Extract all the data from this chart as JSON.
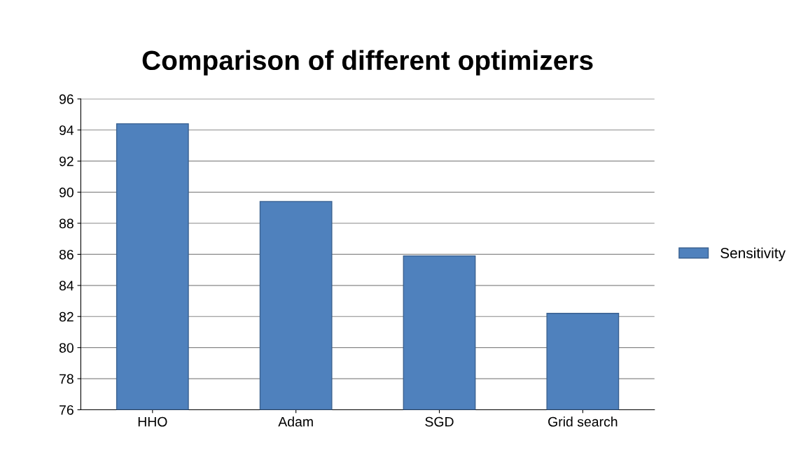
{
  "chart_data": {
    "type": "bar",
    "title": "Comparison of different optimizers",
    "categories": [
      "HHO",
      "Adam",
      "SGD",
      "Grid search"
    ],
    "series": [
      {
        "name": "Sensitivity",
        "color": "#4f81bd",
        "values": [
          94.4,
          89.4,
          85.9,
          82.2
        ]
      }
    ],
    "ylim": [
      76,
      96
    ],
    "yticks": [
      76,
      78,
      80,
      82,
      84,
      86,
      88,
      90,
      92,
      94,
      96
    ],
    "grid": "y",
    "legend": "right"
  }
}
